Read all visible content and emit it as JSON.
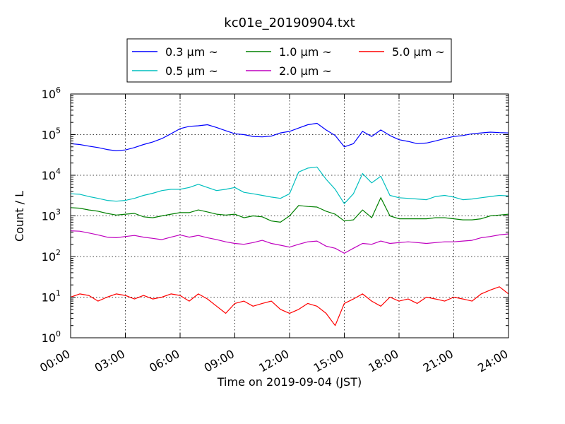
{
  "chart_data": {
    "type": "line",
    "title": "kc01e_20190904.txt",
    "xlabel": "Time on 2019-09-04 (JST)",
    "ylabel": "Count / L",
    "y_scale": "log",
    "ylim": [
      1,
      1000000
    ],
    "yticks": [
      {
        "value": 1,
        "base": "10",
        "exp": "0"
      },
      {
        "value": 10,
        "base": "10",
        "exp": "1"
      },
      {
        "value": 100,
        "base": "10",
        "exp": "2"
      },
      {
        "value": 1000,
        "base": "10",
        "exp": "3"
      },
      {
        "value": 10000,
        "base": "10",
        "exp": "4"
      },
      {
        "value": 100000,
        "base": "10",
        "exp": "5"
      },
      {
        "value": 1000000,
        "base": "10",
        "exp": "6"
      }
    ],
    "xlim": [
      "00:00",
      "24:00"
    ],
    "xticks": [
      "00:00",
      "03:00",
      "06:00",
      "09:00",
      "12:00",
      "15:00",
      "18:00",
      "21:00",
      "24:00"
    ],
    "grid": true,
    "legend_position": "top-center",
    "x": [
      "00:00",
      "00:30",
      "01:00",
      "01:30",
      "02:00",
      "02:30",
      "03:00",
      "03:30",
      "04:00",
      "04:30",
      "05:00",
      "05:30",
      "06:00",
      "06:30",
      "07:00",
      "07:30",
      "08:00",
      "08:30",
      "09:00",
      "09:30",
      "10:00",
      "10:30",
      "11:00",
      "11:30",
      "12:00",
      "12:30",
      "13:00",
      "13:30",
      "14:00",
      "14:30",
      "15:00",
      "15:30",
      "16:00",
      "16:30",
      "17:00",
      "17:30",
      "18:00",
      "18:30",
      "19:00",
      "19:30",
      "20:00",
      "20:30",
      "21:00",
      "21:30",
      "22:00",
      "22:30",
      "23:00",
      "23:30",
      "24:00"
    ],
    "series": [
      {
        "name": "0.3 μm ~",
        "color": "#0000ff",
        "values": [
          60000,
          57000,
          52000,
          48000,
          43000,
          40000,
          42000,
          48000,
          57000,
          66000,
          80000,
          105000,
          140000,
          160000,
          165000,
          175000,
          150000,
          125000,
          105000,
          100000,
          90000,
          88000,
          92000,
          110000,
          120000,
          145000,
          175000,
          190000,
          130000,
          95000,
          50000,
          60000,
          120000,
          90000,
          130000,
          95000,
          75000,
          68000,
          60000,
          62000,
          70000,
          80000,
          90000,
          95000,
          105000,
          110000,
          115000,
          112000,
          110000
        ]
      },
      {
        "name": "0.5 μm ~",
        "color": "#00bfbf",
        "values": [
          3500,
          3400,
          3000,
          2700,
          2400,
          2300,
          2400,
          2700,
          3200,
          3600,
          4200,
          4500,
          4500,
          5000,
          6000,
          5000,
          4200,
          4500,
          5000,
          3800,
          3500,
          3200,
          2900,
          2700,
          3500,
          12000,
          15000,
          16000,
          8000,
          4500,
          2000,
          3500,
          11000,
          6500,
          9500,
          3200,
          2800,
          2700,
          2600,
          2500,
          3000,
          3200,
          2900,
          2500,
          2600,
          2800,
          3000,
          3200,
          3100
        ]
      },
      {
        "name": "1.0 μm ~",
        "color": "#008000",
        "values": [
          1600,
          1550,
          1400,
          1300,
          1150,
          1050,
          1100,
          1150,
          950,
          900,
          1000,
          1100,
          1200,
          1200,
          1400,
          1250,
          1100,
          1050,
          1100,
          900,
          1000,
          950,
          750,
          700,
          1000,
          1800,
          1700,
          1650,
          1300,
          1100,
          750,
          800,
          1400,
          900,
          2800,
          1000,
          850,
          850,
          850,
          850,
          900,
          900,
          850,
          800,
          800,
          850,
          1000,
          1050,
          1100
        ]
      },
      {
        "name": "2.0 μm ~",
        "color": "#bf00bf",
        "values": [
          430,
          420,
          380,
          340,
          300,
          290,
          310,
          330,
          300,
          280,
          260,
          300,
          340,
          300,
          330,
          290,
          260,
          230,
          210,
          200,
          220,
          250,
          210,
          190,
          170,
          200,
          230,
          240,
          180,
          160,
          120,
          160,
          210,
          200,
          240,
          210,
          220,
          230,
          220,
          210,
          220,
          230,
          230,
          240,
          250,
          290,
          310,
          340,
          360
        ]
      },
      {
        "name": "5.0 μm ~",
        "color": "#ff0000",
        "values": [
          10,
          12,
          11,
          8,
          10,
          12,
          11,
          9,
          11,
          9,
          10,
          12,
          11,
          8,
          12,
          9,
          6,
          4,
          7,
          8,
          6,
          7,
          8,
          5,
          4,
          5,
          7,
          6,
          4,
          2,
          7,
          9,
          12,
          8,
          6,
          10,
          8,
          9,
          7,
          10,
          9,
          8,
          10,
          9,
          8,
          12,
          15,
          18,
          12
        ]
      }
    ]
  }
}
